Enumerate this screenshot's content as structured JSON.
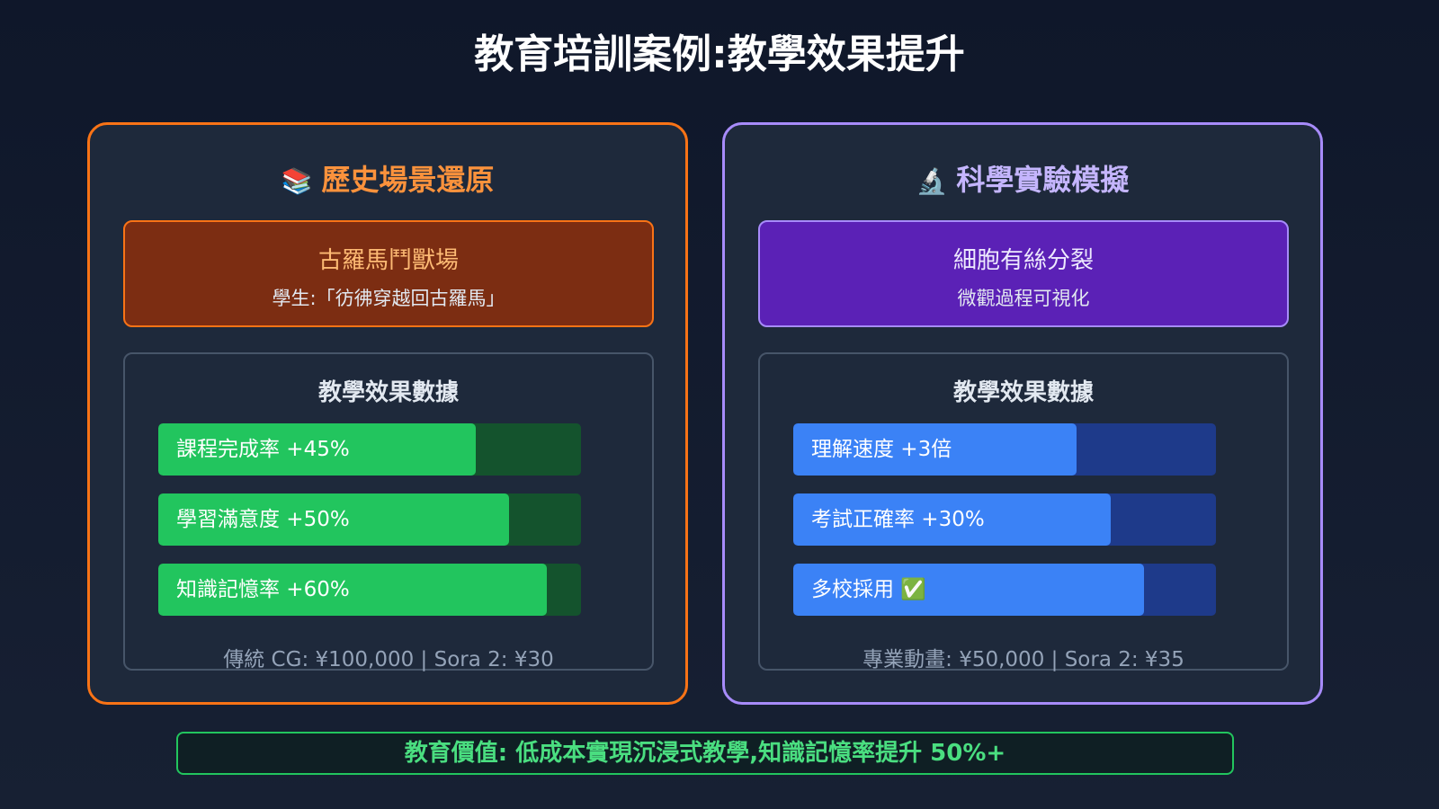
{
  "title": "教育培訓案例:教學效果提升",
  "colors": {
    "history_accent": "#f97316",
    "science_accent": "#a78bfa",
    "green_bar": "#22c55e",
    "blue_bar": "#3b82f6"
  },
  "panels": [
    {
      "icon": "📚",
      "icon_name": "books-icon",
      "title": "歷史場景還原",
      "card_title": "古羅馬鬥獸場",
      "card_subtitle": "學生:「彷彿穿越回古羅馬」",
      "stats_heading": "教學效果數據",
      "bars": [
        {
          "label": "課程完成率 +45%",
          "fill_percent": 75
        },
        {
          "label": "學習滿意度 +50%",
          "fill_percent": 83
        },
        {
          "label": "知識記憶率 +60%",
          "fill_percent": 92
        }
      ],
      "cost": "傳統 CG: ¥100,000 | Sora 2: ¥30"
    },
    {
      "icon": "🔬",
      "icon_name": "microscope-icon",
      "title": "科學實驗模擬",
      "card_title": "細胞有絲分裂",
      "card_subtitle": "微觀過程可視化",
      "stats_heading": "教學效果數據",
      "bars": [
        {
          "label": "理解速度 +3倍",
          "fill_percent": 67
        },
        {
          "label": "考試正確率 +30%",
          "fill_percent": 75
        },
        {
          "label": "多校採用 ✅",
          "fill_percent": 83
        }
      ],
      "cost": "專業動畫: ¥50,000 | Sora 2: ¥35"
    }
  ],
  "bottom": "教育價值: 低成本實現沉浸式教學,知識記憶率提升 50%+"
}
